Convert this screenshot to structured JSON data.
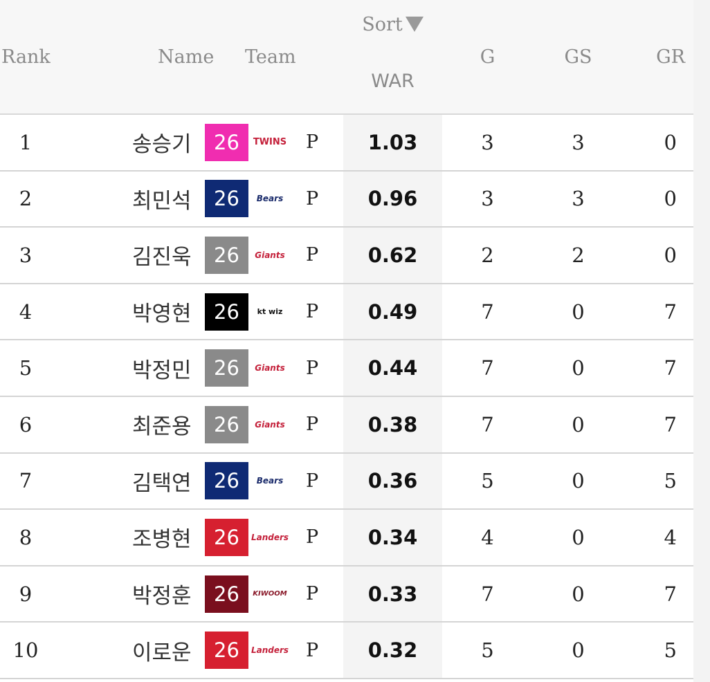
{
  "headers": {
    "rank": "Rank",
    "name": "Name",
    "team": "Team",
    "sort": "Sort",
    "war": "WAR",
    "g": "G",
    "gs": "GS",
    "gr": "GR"
  },
  "icons": {
    "sort": "sort-descending-arrow-icon"
  },
  "rows": [
    {
      "rank": "1",
      "name": "송승기",
      "age": "26",
      "age_color": "#f02db0",
      "team_logo": "lg-twins-logo",
      "team_text": "TWINS",
      "pos": "P",
      "war": "1.03",
      "g": "3",
      "gs": "3",
      "gr": "0"
    },
    {
      "rank": "2",
      "name": "최민석",
      "age": "26",
      "age_color": "#0f2a74",
      "team_logo": "doosan-bears-logo",
      "team_text": "Bears",
      "pos": "P",
      "war": "0.96",
      "g": "3",
      "gs": "3",
      "gr": "0"
    },
    {
      "rank": "3",
      "name": "김진욱",
      "age": "26",
      "age_color": "#8a8a8a",
      "team_logo": "lotte-giants-logo",
      "team_text": "Giants",
      "pos": "P",
      "war": "0.62",
      "g": "2",
      "gs": "2",
      "gr": "0"
    },
    {
      "rank": "4",
      "name": "박영현",
      "age": "26",
      "age_color": "#000000",
      "team_logo": "kt-wiz-logo",
      "team_text": "kt wiz",
      "pos": "P",
      "war": "0.49",
      "g": "7",
      "gs": "0",
      "gr": "7"
    },
    {
      "rank": "5",
      "name": "박정민",
      "age": "26",
      "age_color": "#8a8a8a",
      "team_logo": "lotte-giants-logo",
      "team_text": "Giants",
      "pos": "P",
      "war": "0.44",
      "g": "7",
      "gs": "0",
      "gr": "7"
    },
    {
      "rank": "6",
      "name": "최준용",
      "age": "26",
      "age_color": "#8a8a8a",
      "team_logo": "lotte-giants-logo",
      "team_text": "Giants",
      "pos": "P",
      "war": "0.38",
      "g": "7",
      "gs": "0",
      "gr": "7"
    },
    {
      "rank": "7",
      "name": "김택연",
      "age": "26",
      "age_color": "#0f2a74",
      "team_logo": "doosan-bears-logo",
      "team_text": "Bears",
      "pos": "P",
      "war": "0.36",
      "g": "5",
      "gs": "0",
      "gr": "5"
    },
    {
      "rank": "8",
      "name": "조병현",
      "age": "26",
      "age_color": "#d62030",
      "team_logo": "ssg-landers-logo",
      "team_text": "Landers",
      "pos": "P",
      "war": "0.34",
      "g": "4",
      "gs": "0",
      "gr": "4"
    },
    {
      "rank": "9",
      "name": "박정훈",
      "age": "26",
      "age_color": "#7a0f1e",
      "team_logo": "kiwoom-heroes-logo",
      "team_text": "KIWOOM",
      "pos": "P",
      "war": "0.33",
      "g": "7",
      "gs": "0",
      "gr": "7"
    },
    {
      "rank": "10",
      "name": "이로운",
      "age": "26",
      "age_color": "#d62030",
      "team_logo": "ssg-landers-logo",
      "team_text": "Landers",
      "pos": "P",
      "war": "0.32",
      "g": "5",
      "gs": "0",
      "gr": "5"
    }
  ]
}
